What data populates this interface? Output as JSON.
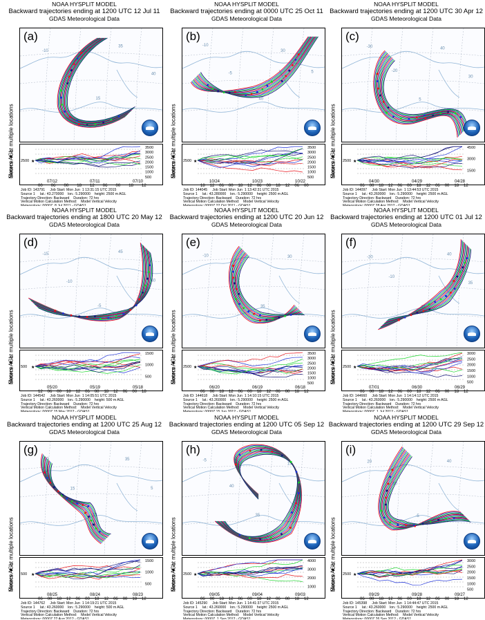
{
  "panels": [
    {
      "label": "(a)",
      "model": "NOAA HYSPLIT MODEL",
      "title": "Backward trajectories ending at 1200 UTC 12 Jul 11",
      "meteo": "GDAS Meteorological Data",
      "source_label": "Source ★ at multiple locations",
      "yaxis": "Meters AGL",
      "ticks": [
        "2500",
        "3500",
        "3000",
        "2500",
        "2000",
        "1500",
        "1000",
        "500"
      ],
      "xticks": [
        "00",
        "06",
        "00",
        "18",
        "12",
        "06",
        "00",
        "18",
        "12"
      ],
      "dates": [
        "07/12",
        "07/11",
        "07/10"
      ],
      "info": [
        "Job ID: 143791     Job Start: Mon Jun  1 13:31:15 UTC 2015",
        "Source 1     lat.: 43.270000    lon.: 5.290000    height: 2500 m AGL",
        "Trajectory Direction: Backward    Duration: 72 hrs",
        "Vertical Motion Calculation Method:    Model Vertical Velocity",
        "Meteorology: 0000Z  8 Jul 2011 - GDAS1"
      ],
      "numbers": [
        "-10",
        "-5",
        "15",
        "35",
        "40"
      ]
    },
    {
      "label": "(b)",
      "model": "NOAA HYSPLIT MODEL",
      "title": "Backward trajectories ending at 0000 UTC 25 Oct 11",
      "meteo": "GDAS Meteorological Data",
      "source_label": "Source ★ at multiple locations",
      "yaxis": "Meters AGL",
      "ticks": [
        "2500",
        "3500",
        "3000",
        "2500",
        "2000",
        "1500",
        "1000",
        "500"
      ],
      "xticks": [
        "18",
        "12",
        "06",
        "00",
        "18",
        "12",
        "06",
        "00",
        "18",
        "12",
        "06",
        "00"
      ],
      "dates": [
        "10/24",
        "10/23",
        "10/22"
      ],
      "info": [
        "Job ID: 144045     Job Start: Mon Jun  1 13:42:31 UTC 2015",
        "Source 1     lat.: 43.280000    lon.: 5.290000    height: 2500 m AGL",
        "Trajectory Direction: Backward    Duration: 72 hrs",
        "Vertical Motion Calculation Method:    Model Vertical Velocity",
        "Meteorology: 0000Z 22 Oct 2011 - GDAS1"
      ],
      "numbers": [
        "-10",
        "-5",
        "40",
        "30",
        "5"
      ]
    },
    {
      "label": "(c)",
      "model": "NOAA HYSPLIT MODEL",
      "title": "Backward trajectories ending at 1200 UTC 30 Apr 12",
      "meteo": "GDAS Meteorological Data",
      "source_label": "Source ★ at multiple locations",
      "yaxis": "Meters AGL",
      "ticks": [
        "2500",
        "4500",
        "3000",
        "1500"
      ],
      "xticks": [
        "06",
        "00",
        "18",
        "12",
        "06",
        "00",
        "18",
        "12",
        "06",
        "00",
        "18",
        "12"
      ],
      "dates": [
        "04/30",
        "04/29",
        "04/28"
      ],
      "info": [
        "Job ID: 144097     Job Start: Mon Jun  1 13:44:53 UTC 2015",
        "Source 1     lat.: 43.260000    lon.: 5.290000    height: 2500 m AGL",
        "Trajectory Direction: Backward    Duration: 72 hrs",
        "Vertical Motion Calculation Method:    Model Vertical Velocity",
        "Meteorology: 0000Z 28 Apr 2012 - GDAS1"
      ],
      "numbers": [
        "-30",
        "-20",
        "5",
        "40",
        "30"
      ]
    },
    {
      "label": "(d)",
      "model": "NOAA HYSPLIT MODEL",
      "title": "Backward trajectories ending at 1800 UTC 20 May 12",
      "meteo": "GDAS Meteorological Data",
      "source_label": "Source ★ at multiple locations",
      "yaxis": "Meters AGL",
      "ticks": [
        "500",
        "1500",
        "1000",
        "500"
      ],
      "xticks": [
        "12",
        "06",
        "00",
        "18",
        "12",
        "06",
        "00",
        "18",
        "12",
        "06",
        "00",
        "18"
      ],
      "dates": [
        "05/20",
        "05/19",
        "05/18"
      ],
      "info": [
        "Job ID: 144542     Job Start: Mon Jun  1 14:05:51 UTC 2015",
        "Source 1     lat.: 43.260000    lon.: 5.290000    height: 500 m AGL",
        "Trajectory Direction: Backward    Duration: 72 hrs",
        "Vertical Motion Calculation Method:    Model Vertical Velocity",
        "Meteorology: 0000Z 15 May 2012 - GDAS1"
      ],
      "numbers": [
        "-15",
        "-10",
        "-5",
        "45",
        "40"
      ]
    },
    {
      "label": "(e)",
      "model": "NOAA HYSPLIT MODEL",
      "title": "Backward trajectories ending at 1200 UTC 20 Jun 12",
      "meteo": "GDAS Meteorological Data",
      "source_label": "Source ★ at multiple locations",
      "yaxis": "Meters AGL",
      "ticks": [
        "2500",
        "3500",
        "3000",
        "2500",
        "2000",
        "1500",
        "1000",
        "500"
      ],
      "xticks": [
        "06",
        "00",
        "18",
        "12",
        "06",
        "00",
        "18",
        "12",
        "06",
        "00",
        "18",
        "12"
      ],
      "dates": [
        "06/20",
        "06/19",
        "06/18"
      ],
      "info": [
        "Job ID: 144618     Job Start: Mon Jun  1 14:10:15 UTC 2015",
        "Source 1     lat.: 43.260000    lon.: 5.290000    height: 2500 m AGL",
        "Trajectory Direction: Backward    Duration: 72 hrs",
        "Vertical Motion Calculation Method:    Model Vertical Velocity",
        "Meteorology: 0000Z 15 Jun 2012 - GDAS1"
      ],
      "numbers": [
        "-10",
        "40",
        "35",
        "30"
      ]
    },
    {
      "label": "(f)",
      "model": "NOAA HYSPLIT MODEL",
      "title": "Backward trajectories ending at 1200 UTC 01 Jul 12",
      "meteo": "GDAS Meteorological Data",
      "source_label": "Source ★ at multiple locations",
      "yaxis": "Meters AGL",
      "ticks": [
        "2500",
        "3000",
        "2500",
        "2000",
        "1500",
        "1000",
        "500"
      ],
      "xticks": [
        "06",
        "00",
        "18",
        "12",
        "06",
        "00",
        "18",
        "12",
        "06",
        "00",
        "18",
        "12"
      ],
      "dates": [
        "07/01",
        "06/30",
        "06/29"
      ],
      "info": [
        "Job ID: 144660     Job Start: Mon Jun  1 14:14:12 UTC 2015",
        "Source 1     lat.: 43.260000    lon.: 5.290000    height: 2500 m AGL",
        "Trajectory Direction: Backward    Duration: 72 hrs",
        "Vertical Motion Calculation Method:    Model Vertical Velocity",
        "Meteorology: 0000Z  1 Jul 2012 - GDAS1"
      ],
      "numbers": [
        "-20",
        "-10",
        "45",
        "40",
        "35"
      ]
    },
    {
      "label": "(g)",
      "model": "NOAA HYSPLIT MODEL",
      "title": "Backward trajectories ending at 1200 UTC 25 Aug 12",
      "meteo": "GDAS Meteorological Data",
      "source_label": "Source ★ at multiple locations",
      "yaxis": "Meters AGL",
      "ticks": [
        "500",
        "1500",
        "1000",
        "500"
      ],
      "xticks": [
        "06",
        "00",
        "18",
        "12",
        "06",
        "00",
        "18",
        "12",
        "06",
        "00",
        "18",
        "12"
      ],
      "dates": [
        "08/25",
        "08/24",
        "08/23"
      ],
      "info": [
        "Job ID: 144762     Job Start: Mon Jun  1 14:19:21 UTC 2015",
        "Source 1     lat.: 43.260000    lon.: 5.290000    height: 500 m AGL",
        "Trajectory Direction: Backward    Duration: 72 hrs",
        "Vertical Motion Calculation Method:    Model Vertical Velocity",
        "Meteorology: 0000Z 22 Aug 2012 - GDAS1"
      ],
      "numbers": [
        "-10",
        "15",
        "40",
        "35",
        "5"
      ]
    },
    {
      "label": "(h)",
      "model": "NOAA HYSPLIT MODEL",
      "title": "Backward trajectories ending at 1200 UTC 05 Sep 12",
      "meteo": "GDAS Meteorological Data",
      "source_label": "Source ★ at multiple locations",
      "yaxis": "Meters AGL",
      "ticks": [
        "2500",
        "4000",
        "3000",
        "2000",
        "1000"
      ],
      "xticks": [
        "06",
        "00",
        "18",
        "12",
        "06",
        "00",
        "18",
        "12",
        "06",
        "00",
        "18",
        "12"
      ],
      "dates": [
        "09/05",
        "09/04",
        "09/03"
      ],
      "info": [
        "Job ID: 145290     Job Start: Mon Jun  1 14:41:37 UTC 2015",
        "Source 1     lat.: 43.260000    lon.: 5.290000    height: 2500 m AGL",
        "Trajectory Direction: Backward    Duration: 72 hrs",
        "Vertical Motion Calculation Method:    Model Vertical Velocity",
        "Meteorology: 0000Z  1 Sep 2012 - GDAS1"
      ],
      "numbers": [
        "-5",
        "40",
        "35",
        "15"
      ]
    },
    {
      "label": "(i)",
      "model": "NOAA HYSPLIT MODEL",
      "title": "Backward trajectories ending at 1200 UTC 29 Sep 12",
      "meteo": "GDAS Meteorological Data",
      "source_label": "Source ★ at multiple locations",
      "yaxis": "Meters AGL",
      "ticks": [
        "2500",
        "3000",
        "2500",
        "2000",
        "1500",
        "1000",
        "500"
      ],
      "xticks": [
        "06",
        "00",
        "18",
        "12",
        "06",
        "00",
        "18",
        "12",
        "06",
        "00",
        "18",
        "12"
      ],
      "dates": [
        "09/29",
        "09/28",
        "09/27"
      ],
      "info": [
        "Job ID: 145398     Job Start: Mon Jun  1 14:44:47 UTC 2015",
        "Source 1     lat.: 43.260000    lon.: 5.290000    height: 2500 m AGL",
        "Trajectory Direction: Backward    Duration: 72 hrs",
        "Vertical Motion Calculation Method:    Model Vertical Velocity",
        "Meteorology: 0000Z 26 Sep 2012 - GDAS1"
      ],
      "numbers": [
        "20",
        "30",
        "-5",
        "40"
      ]
    }
  ],
  "colors": {
    "red": "#e8141b",
    "blue": "#1c2fd9",
    "green": "#19d62a",
    "navy": "#15157a",
    "coast": "#8fb4d6",
    "grid": "#9aa6b8"
  }
}
